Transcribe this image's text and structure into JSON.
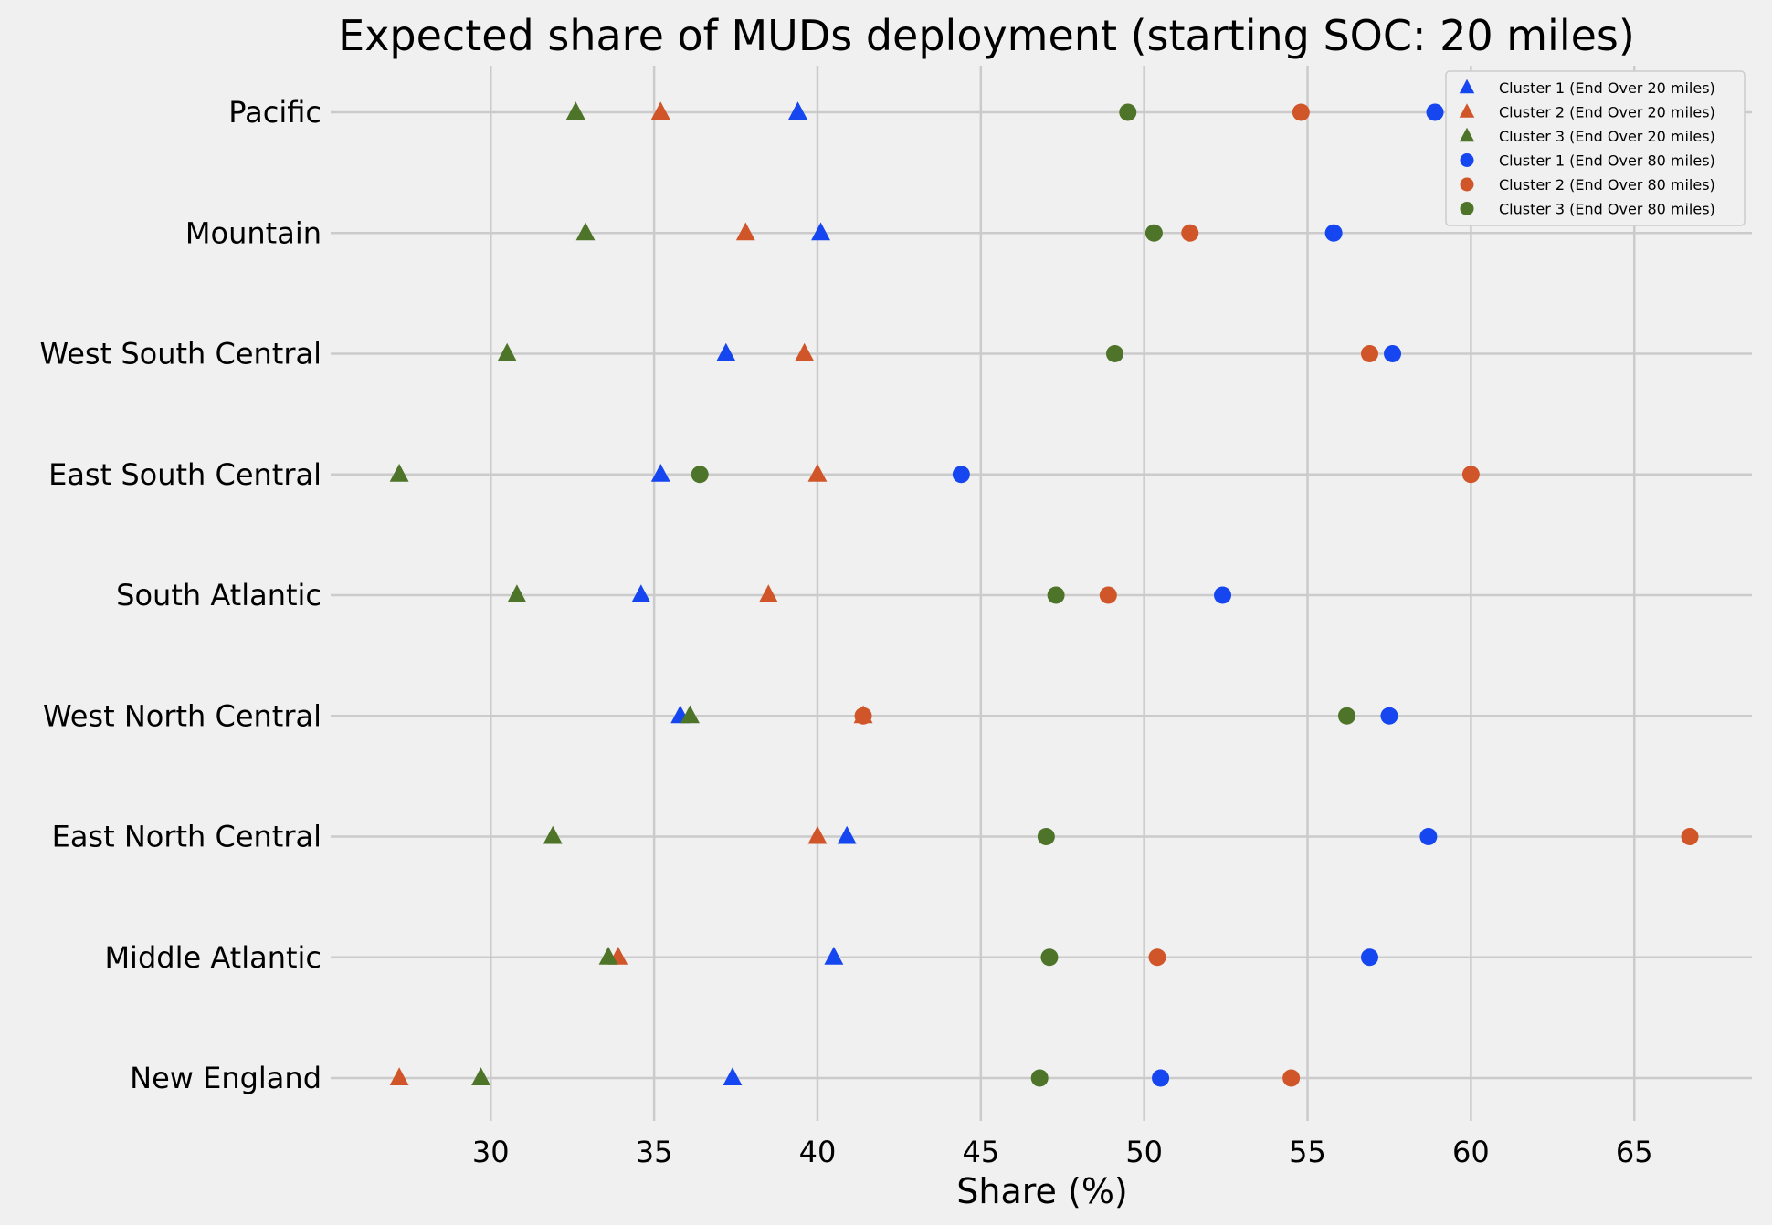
{
  "chart_data": {
    "type": "scatter",
    "title": "Expected share of MUDs deployment (starting SOC: 20 miles)",
    "xlabel": "Share (%)",
    "ylabel": "",
    "xlim": [
      25.1,
      68.6
    ],
    "xticks": [
      30,
      35,
      40,
      45,
      50,
      55,
      60,
      65
    ],
    "categories": [
      "New England",
      "Middle Atlantic",
      "East North Central",
      "West North Central",
      "South Atlantic",
      "East South Central",
      "West South Central",
      "Mountain",
      "Pacific"
    ],
    "grid": true,
    "legend_position": "top-right",
    "series": [
      {
        "name": "Cluster 1 (End Over 20 miles)",
        "marker": "triangle",
        "color": "#1546f0",
        "values": [
          37.4,
          40.5,
          40.9,
          35.8,
          34.6,
          35.2,
          37.2,
          40.1,
          39.4
        ]
      },
      {
        "name": "Cluster 2 (End Over 20 miles)",
        "marker": "triangle",
        "color": "#d0562a",
        "values": [
          27.2,
          33.9,
          40.0,
          41.4,
          38.5,
          40.0,
          39.6,
          37.8,
          35.2
        ]
      },
      {
        "name": "Cluster 3 (End Over 20 miles)",
        "marker": "triangle",
        "color": "#4e7429",
        "values": [
          29.7,
          33.6,
          31.9,
          36.1,
          30.8,
          27.2,
          30.5,
          32.9,
          32.6
        ]
      },
      {
        "name": "Cluster 1 (End Over 80 miles)",
        "marker": "circle",
        "color": "#1546f0",
        "values": [
          50.5,
          56.9,
          58.7,
          57.5,
          52.4,
          44.4,
          57.6,
          55.8,
          58.9
        ]
      },
      {
        "name": "Cluster 2 (End Over 80 miles)",
        "marker": "circle",
        "color": "#d0562a",
        "values": [
          54.5,
          50.4,
          66.7,
          41.4,
          48.9,
          60.0,
          56.9,
          51.4,
          54.8
        ]
      },
      {
        "name": "Cluster 3 (End Over 80 miles)",
        "marker": "circle",
        "color": "#4e7429",
        "values": [
          46.8,
          47.1,
          47.0,
          56.2,
          47.3,
          36.4,
          49.1,
          50.3,
          49.5
        ]
      }
    ]
  }
}
